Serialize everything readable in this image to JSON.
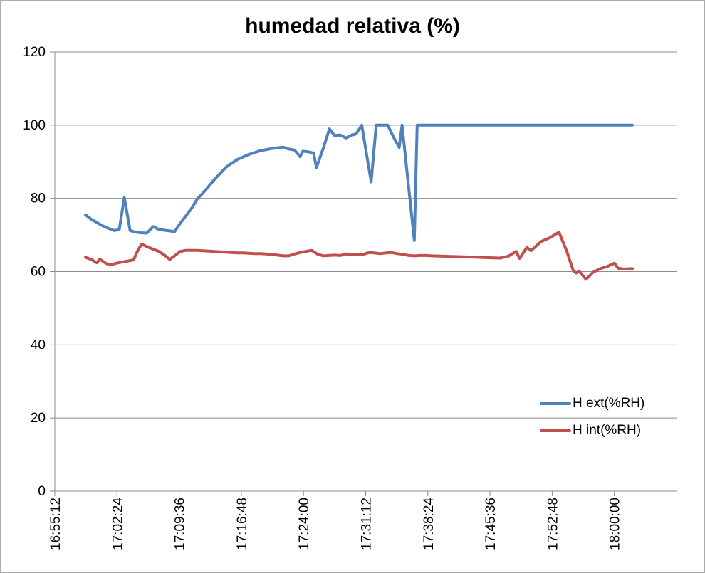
{
  "colors": {
    "background": "#FFFFFF",
    "frame_border": "#ABABAB",
    "gridline": "#8C8C8C",
    "axis": "#8C8C8C",
    "text": "#000000",
    "series_ext": "#4F81BD",
    "series_int": "#C0504D"
  },
  "chart_data": {
    "type": "line",
    "title": "humedad relativa (%)",
    "grid": "horizontal",
    "legend_position": "right-inside",
    "x_axis": {
      "tick_labels": [
        "16:55:12",
        "17:02:24",
        "17:09:36",
        "17:16:48",
        "17:24:00",
        "17:31:12",
        "17:38:24",
        "17:45:36",
        "17:52:48",
        "18:00:00"
      ],
      "tick_interval_seconds": 432,
      "label_rotation_deg": 90
    },
    "y_axis": {
      "min": 0,
      "max": 120,
      "step": 20,
      "tick_labels": [
        "0",
        "20",
        "40",
        "60",
        "80",
        "100",
        "120"
      ]
    },
    "series": [
      {
        "name": "H ext(%RH)",
        "color": "#4F81BD",
        "points": [
          [
            "16:58:45",
            75.5
          ],
          [
            "16:59:25",
            74.3
          ],
          [
            "17:00:04",
            73.4
          ],
          [
            "17:00:44",
            72.5
          ],
          [
            "17:01:24",
            71.8
          ],
          [
            "17:02:03",
            71.2
          ],
          [
            "17:02:40",
            71.5
          ],
          [
            "17:03:15",
            80.2
          ],
          [
            "17:03:55",
            71.2
          ],
          [
            "17:04:32",
            70.8
          ],
          [
            "17:05:11",
            70.6
          ],
          [
            "17:05:51",
            70.5
          ],
          [
            "17:06:36",
            72.3
          ],
          [
            "17:07:10",
            71.6
          ],
          [
            "17:07:50",
            71.3
          ],
          [
            "17:08:30",
            71.1
          ],
          [
            "17:09:04",
            70.9
          ],
          [
            "17:09:44",
            73.2
          ],
          [
            "17:10:23",
            75.2
          ],
          [
            "17:11:03",
            77.3
          ],
          [
            "17:11:43",
            79.9
          ],
          [
            "17:12:22",
            81.5
          ],
          [
            "17:13:02",
            83.3
          ],
          [
            "17:13:42",
            85.2
          ],
          [
            "17:14:21",
            86.8
          ],
          [
            "17:15:01",
            88.5
          ],
          [
            "17:15:41",
            89.6
          ],
          [
            "17:16:20",
            90.6
          ],
          [
            "17:17:00",
            91.3
          ],
          [
            "17:17:40",
            92.0
          ],
          [
            "17:18:19",
            92.5
          ],
          [
            "17:18:59",
            93.0
          ],
          [
            "17:19:38",
            93.3
          ],
          [
            "17:20:18",
            93.6
          ],
          [
            "17:20:58",
            93.8
          ],
          [
            "17:21:37",
            94.0
          ],
          [
            "17:22:17",
            93.5
          ],
          [
            "17:22:57",
            93.2
          ],
          [
            "17:23:36",
            91.4
          ],
          [
            "17:23:56",
            92.9
          ],
          [
            "17:24:36",
            92.7
          ],
          [
            "17:25:10",
            92.4
          ],
          [
            "17:25:30",
            88.4
          ],
          [
            "17:26:20",
            94.0
          ],
          [
            "17:27:00",
            99.0
          ],
          [
            "17:27:35",
            97.2
          ],
          [
            "17:28:15",
            97.3
          ],
          [
            "17:28:55",
            96.5
          ],
          [
            "17:29:30",
            97.2
          ],
          [
            "17:30:05",
            97.6
          ],
          [
            "17:30:45",
            100
          ],
          [
            "17:31:50",
            84.5
          ],
          [
            "17:32:25",
            100
          ],
          [
            "17:33:05",
            100
          ],
          [
            "17:33:45",
            100
          ],
          [
            "17:34:25",
            96.8
          ],
          [
            "17:35:05",
            93.9
          ],
          [
            "17:35:25",
            100
          ],
          [
            "17:36:50",
            68.5
          ],
          [
            "17:37:10",
            100
          ],
          [
            "17:38:00",
            100
          ],
          [
            "17:40:00",
            100
          ],
          [
            "17:42:00",
            100
          ],
          [
            "17:44:00",
            100
          ],
          [
            "17:46:00",
            100
          ],
          [
            "17:48:00",
            100
          ],
          [
            "17:50:00",
            100
          ],
          [
            "17:52:00",
            100
          ],
          [
            "17:54:00",
            100
          ],
          [
            "17:56:00",
            100
          ],
          [
            "17:58:00",
            100
          ],
          [
            "18:00:00",
            100
          ],
          [
            "18:02:05",
            100
          ]
        ]
      },
      {
        "name": "H int(%RH)",
        "color": "#C0504D",
        "points": [
          [
            "16:58:45",
            63.9
          ],
          [
            "16:59:25",
            63.3
          ],
          [
            "17:00:04",
            62.4
          ],
          [
            "17:00:25",
            63.4
          ],
          [
            "17:01:05",
            62.3
          ],
          [
            "17:01:40",
            61.8
          ],
          [
            "17:02:20",
            62.3
          ],
          [
            "17:03:00",
            62.6
          ],
          [
            "17:03:40",
            62.9
          ],
          [
            "17:04:20",
            63.2
          ],
          [
            "17:04:45",
            65.5
          ],
          [
            "17:05:15",
            67.5
          ],
          [
            "17:05:51",
            66.8
          ],
          [
            "17:06:36",
            66.1
          ],
          [
            "17:07:10",
            65.6
          ],
          [
            "17:07:50",
            64.6
          ],
          [
            "17:08:30",
            63.3
          ],
          [
            "17:09:04",
            64.3
          ],
          [
            "17:09:44",
            65.5
          ],
          [
            "17:10:23",
            65.8
          ],
          [
            "17:11:03",
            65.8
          ],
          [
            "17:11:43",
            65.8
          ],
          [
            "17:12:22",
            65.7
          ],
          [
            "17:13:02",
            65.6
          ],
          [
            "17:13:42",
            65.5
          ],
          [
            "17:14:21",
            65.4
          ],
          [
            "17:15:01",
            65.3
          ],
          [
            "17:15:41",
            65.2
          ],
          [
            "17:16:20",
            65.1
          ],
          [
            "17:17:00",
            65.1
          ],
          [
            "17:17:40",
            65.0
          ],
          [
            "17:18:19",
            64.9
          ],
          [
            "17:18:59",
            64.9
          ],
          [
            "17:19:38",
            64.8
          ],
          [
            "17:20:18",
            64.7
          ],
          [
            "17:20:58",
            64.5
          ],
          [
            "17:21:37",
            64.3
          ],
          [
            "17:22:17",
            64.3
          ],
          [
            "17:22:57",
            64.8
          ],
          [
            "17:23:36",
            65.2
          ],
          [
            "17:24:16",
            65.5
          ],
          [
            "17:24:56",
            65.8
          ],
          [
            "17:25:36",
            64.8
          ],
          [
            "17:26:16",
            64.3
          ],
          [
            "17:26:56",
            64.4
          ],
          [
            "17:27:35",
            64.5
          ],
          [
            "17:28:15",
            64.4
          ],
          [
            "17:28:55",
            64.8
          ],
          [
            "17:29:35",
            64.7
          ],
          [
            "17:30:14",
            64.6
          ],
          [
            "17:30:54",
            64.7
          ],
          [
            "17:31:34",
            65.2
          ],
          [
            "17:32:14",
            65.1
          ],
          [
            "17:32:53",
            64.9
          ],
          [
            "17:33:33",
            65.1
          ],
          [
            "17:34:13",
            65.2
          ],
          [
            "17:34:53",
            64.9
          ],
          [
            "17:35:33",
            64.7
          ],
          [
            "17:36:12",
            64.4
          ],
          [
            "17:36:52",
            64.3
          ],
          [
            "17:37:32",
            64.4
          ],
          [
            "17:38:12",
            64.4
          ],
          [
            "17:38:51",
            64.3
          ],
          [
            "17:40:10",
            64.2
          ],
          [
            "17:41:29",
            64.1
          ],
          [
            "17:42:48",
            64.0
          ],
          [
            "17:44:07",
            63.9
          ],
          [
            "17:45:26",
            63.8
          ],
          [
            "17:46:45",
            63.7
          ],
          [
            "17:47:43",
            64.2
          ],
          [
            "17:48:37",
            65.5
          ],
          [
            "17:49:02",
            63.6
          ],
          [
            "17:49:52",
            66.6
          ],
          [
            "17:50:21",
            65.7
          ],
          [
            "17:51:31",
            68.2
          ],
          [
            "17:52:35",
            69.3
          ],
          [
            "17:53:35",
            70.8
          ],
          [
            "17:54:30",
            65.5
          ],
          [
            "17:55:14",
            60.3
          ],
          [
            "17:55:35",
            59.6
          ],
          [
            "17:55:55",
            60.1
          ],
          [
            "17:56:43",
            57.9
          ],
          [
            "17:57:32",
            59.8
          ],
          [
            "17:58:22",
            60.8
          ],
          [
            "17:59:11",
            61.4
          ],
          [
            "18:00:01",
            62.3
          ],
          [
            "18:00:26",
            60.9
          ],
          [
            "18:01:05",
            60.7
          ],
          [
            "18:02:05",
            60.8
          ]
        ]
      }
    ]
  }
}
